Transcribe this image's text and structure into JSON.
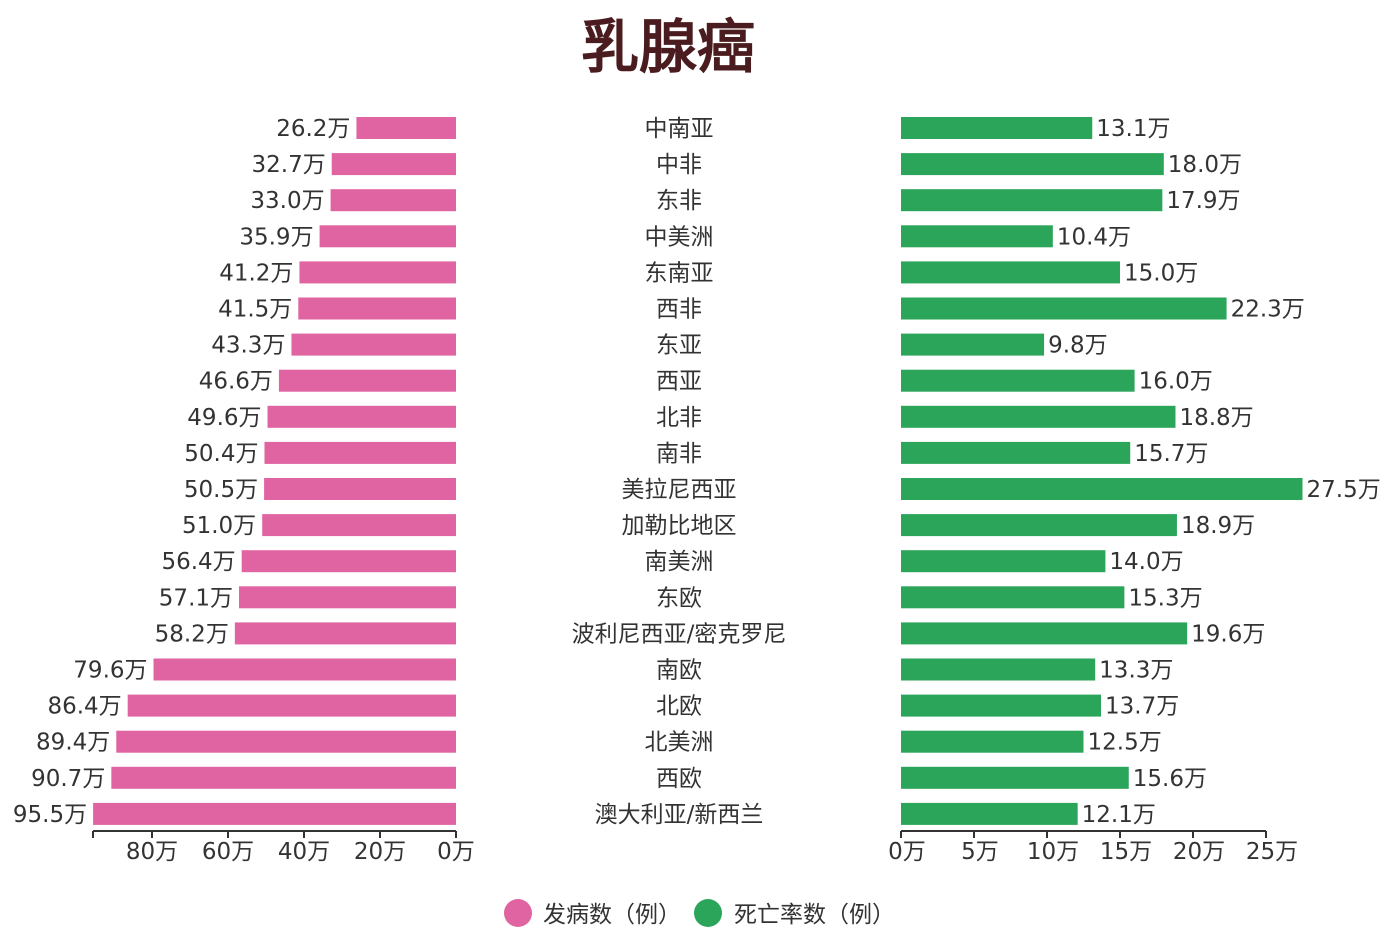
{
  "chart_data": {
    "type": "bar",
    "title": "乳腺癌",
    "categories": [
      "中南亚",
      "中非",
      "东非",
      "中美洲",
      "东南亚",
      "西非",
      "东亚",
      "西亚",
      "北非",
      "南非",
      "美拉尼西亚",
      "加勒比地区",
      "南美洲",
      "东欧",
      "波利尼西亚/密克罗尼",
      "南欧",
      "北欧",
      "北美洲",
      "西欧",
      "澳大利亚/新西兰"
    ],
    "series": [
      {
        "name": "发病数（例）",
        "color": "#e064a2",
        "values": [
          26.2,
          32.7,
          33.0,
          35.9,
          41.2,
          41.5,
          43.3,
          46.6,
          49.6,
          50.4,
          50.5,
          51.0,
          56.4,
          57.1,
          58.2,
          79.6,
          86.4,
          89.4,
          90.7,
          95.5
        ],
        "labels": [
          "26.2万",
          "32.7万",
          "33.0万",
          "35.9万",
          "41.2万",
          "41.5万",
          "43.3万",
          "46.6万",
          "49.6万",
          "50.4万",
          "50.5万",
          "51.0万",
          "56.4万",
          "57.1万",
          "58.2万",
          "79.6万",
          "86.4万",
          "89.4万",
          "90.7万",
          "95.5万"
        ]
      },
      {
        "name": "死亡率数（例）",
        "color": "#2ba55a",
        "values": [
          13.1,
          18.0,
          17.9,
          10.4,
          15.0,
          22.3,
          9.8,
          16.0,
          18.8,
          15.7,
          27.5,
          18.9,
          14.0,
          15.3,
          19.6,
          13.3,
          13.7,
          12.5,
          15.6,
          12.1
        ],
        "labels": [
          "13.1万",
          "18.0万",
          "17.9万",
          "10.4万",
          "15.0万",
          "22.3万",
          "9.8万",
          "16.0万",
          "18.8万",
          "15.7万",
          "27.5万",
          "18.9万",
          "14.0万",
          "15.3万",
          "19.6万",
          "13.3万",
          "13.7万",
          "12.5万",
          "15.6万",
          "12.1万"
        ]
      }
    ],
    "left_axis": {
      "ticks": [
        80,
        60,
        40,
        20,
        0
      ],
      "tick_labels": [
        "80万",
        "60万",
        "40万",
        "20万",
        "0万"
      ],
      "direction": "reversed"
    },
    "right_axis": {
      "ticks": [
        0,
        5,
        10,
        15,
        20,
        25
      ],
      "tick_labels": [
        "0万",
        "5万",
        "10万",
        "15万",
        "20万",
        "25万"
      ]
    },
    "legend": {
      "position": "bottom-center",
      "items": [
        {
          "label": "发病数（例）",
          "color": "#e064a2"
        },
        {
          "label": "死亡率数（例）",
          "color": "#2ba55a"
        }
      ]
    },
    "grid": false
  }
}
